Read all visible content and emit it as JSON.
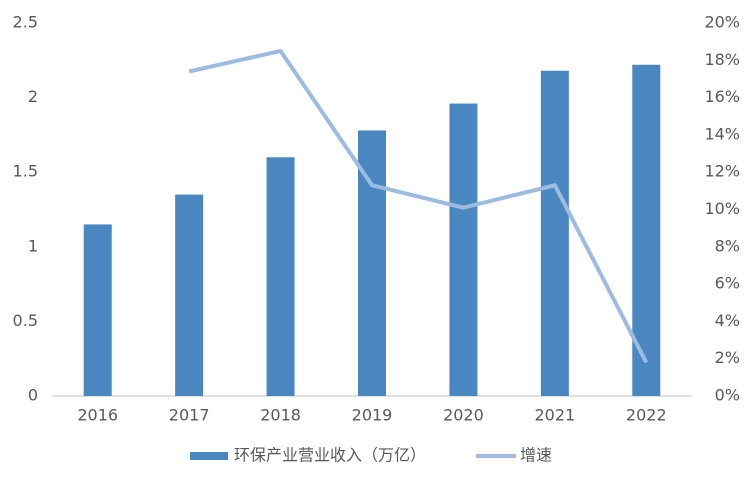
{
  "chart_data": {
    "type": "bar",
    "categories": [
      "2016",
      "2017",
      "2018",
      "2019",
      "2020",
      "2021",
      "2022"
    ],
    "series": [
      {
        "name": "环保产业营业收入（万亿）",
        "type": "bar",
        "color": "#4a86c0",
        "values": [
          1.15,
          1.35,
          1.6,
          1.78,
          1.96,
          2.18,
          2.22
        ]
      },
      {
        "name": "增速",
        "type": "line",
        "axis": "y2",
        "color": "#9dbbe0",
        "values": [
          null,
          17.4,
          18.5,
          11.3,
          10.1,
          11.3,
          1.8
        ]
      }
    ],
    "ylim": [
      0,
      2.5
    ],
    "yticks": [
      0,
      0.5,
      1,
      1.5,
      2,
      2.5
    ],
    "y2lim": [
      0,
      20
    ],
    "y2ticks": [
      {
        "value": 0,
        "label": "0%"
      },
      {
        "value": 2,
        "label": "2%"
      },
      {
        "value": 4,
        "label": "4%"
      },
      {
        "value": 6,
        "label": "6%"
      },
      {
        "value": 8,
        "label": "8%"
      },
      {
        "value": 10,
        "label": "10%"
      },
      {
        "value": 12,
        "label": "12%"
      },
      {
        "value": 14,
        "label": "14%"
      },
      {
        "value": 16,
        "label": "16%"
      },
      {
        "value": 18,
        "label": "18%"
      },
      {
        "value": 20,
        "label": "20%"
      }
    ],
    "grid": false,
    "legend": "bottom"
  }
}
